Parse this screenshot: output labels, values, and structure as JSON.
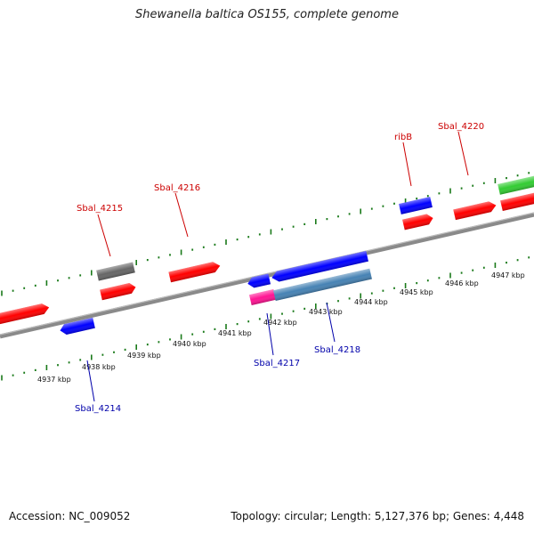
{
  "title": "Shewanella baltica OS155, complete genome",
  "footer": {
    "accession": "Accession: NC_009052",
    "summary": "Topology: circular; Length: 5,127,376 bp; Genes: 4,448"
  },
  "colors": {
    "forward_gene": "#ff0000",
    "reverse_gene": "#0000ff",
    "gray_gene": "#666666",
    "steelblue_gene": "#4682b4",
    "magenta_gene": "#ff1493",
    "green_gene": "#33cc33",
    "tick": "#1a7a1a",
    "backbone": "#888888",
    "label_forward": "#cc0000",
    "label_reverse": "#0000aa"
  },
  "ruler_labels": [
    "4937 kbp",
    "4938 kbp",
    "4939 kbp",
    "4940 kbp",
    "4941 kbp",
    "4942 kbp",
    "4943 kbp",
    "4944 kbp",
    "4945 kbp",
    "4946 kbp",
    "4947 kbp"
  ],
  "gene_labels": {
    "forward": [
      "Sbal_4215",
      "Sbal_4216",
      "ribB",
      "Sbal_4220"
    ],
    "reverse": [
      "Sbal_4214",
      "Sbal_4217",
      "Sbal_4218"
    ]
  }
}
